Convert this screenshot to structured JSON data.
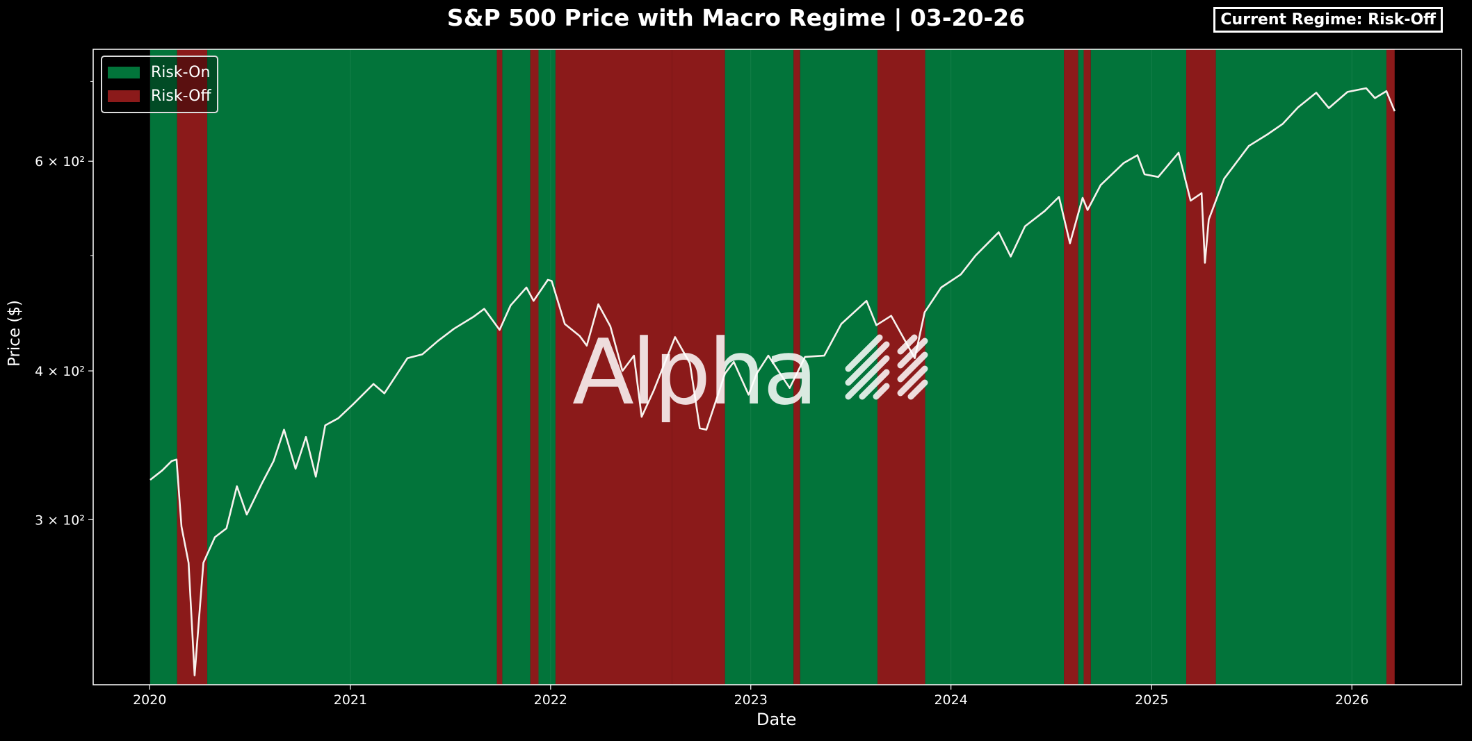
{
  "title": "S&P 500 Price with Macro Regime | 03-20-26",
  "current_regime_label": "Current Regime: Risk-Off",
  "watermark_text": "Alpha",
  "watermark_icon": "slash-pattern-icon",
  "colors": {
    "risk_on": "#02743A",
    "risk_off": "#8B1A1A",
    "price_line": "#F8F2EE",
    "background": "#000000"
  },
  "chart_data": {
    "type": "line",
    "title": "S&P 500 Price with Macro Regime | 03-20-26",
    "xlabel": "Date",
    "ylabel": "Price ($)",
    "yscale": "log",
    "xlim": [
      "2019-09-20",
      "2026-07-20"
    ],
    "ylim": [
      218,
      745
    ],
    "x_ticks": [
      "2020",
      "2021",
      "2022",
      "2023",
      "2024",
      "2025",
      "2026"
    ],
    "y_tick_labels": [
      "3 × 10²",
      "4 × 10²",
      "6 × 10²"
    ],
    "y_tick_values": [
      300,
      400,
      600
    ],
    "y_minor_tick_values": [
      500,
      700
    ],
    "legend": {
      "position": "top-left",
      "entries": [
        "Risk-On",
        "Risk-Off"
      ]
    },
    "regime_bands": [
      {
        "regime": "Risk-On",
        "start": "2020-01-02",
        "end": "2020-02-20"
      },
      {
        "regime": "Risk-Off",
        "start": "2020-02-20",
        "end": "2020-04-15"
      },
      {
        "regime": "Risk-On",
        "start": "2020-04-15",
        "end": "2021-09-25"
      },
      {
        "regime": "Risk-Off",
        "start": "2021-09-25",
        "end": "2021-10-05"
      },
      {
        "regime": "Risk-On",
        "start": "2021-10-05",
        "end": "2021-11-25"
      },
      {
        "regime": "Risk-Off",
        "start": "2021-11-25",
        "end": "2021-12-10"
      },
      {
        "regime": "Risk-On",
        "start": "2021-12-10",
        "end": "2022-01-10"
      },
      {
        "regime": "Risk-Off",
        "start": "2022-01-10",
        "end": "2022-08-10"
      },
      {
        "regime": "Risk-Off",
        "start": "2022-08-10",
        "end": "2022-11-15"
      },
      {
        "regime": "Risk-On",
        "start": "2022-11-15",
        "end": "2023-03-20"
      },
      {
        "regime": "Risk-Off",
        "start": "2023-03-20",
        "end": "2023-04-01"
      },
      {
        "regime": "Risk-On",
        "start": "2023-04-01",
        "end": "2023-08-20"
      },
      {
        "regime": "Risk-Off",
        "start": "2023-08-20",
        "end": "2023-11-15"
      },
      {
        "regime": "Risk-On",
        "start": "2023-11-15",
        "end": "2024-07-25"
      },
      {
        "regime": "Risk-Off",
        "start": "2024-07-25",
        "end": "2024-08-20"
      },
      {
        "regime": "Risk-On",
        "start": "2024-08-20",
        "end": "2024-08-30"
      },
      {
        "regime": "Risk-Off",
        "start": "2024-08-30",
        "end": "2024-09-12"
      },
      {
        "regime": "Risk-On",
        "start": "2024-09-12",
        "end": "2025-03-05"
      },
      {
        "regime": "Risk-Off",
        "start": "2025-03-05",
        "end": "2025-04-28"
      },
      {
        "regime": "Risk-On",
        "start": "2025-04-28",
        "end": "2026-03-05"
      },
      {
        "regime": "Risk-Off",
        "start": "2026-03-05",
        "end": "2026-03-20"
      }
    ],
    "series": [
      {
        "x": [
          "2020-01-02",
          "2020-01-24",
          "2020-02-10",
          "2020-02-19",
          "2020-02-28",
          "2020-03-12",
          "2020-03-23",
          "2020-04-08",
          "2020-04-29",
          "2020-05-20",
          "2020-06-08",
          "2020-06-26",
          "2020-07-24",
          "2020-08-14",
          "2020-09-02",
          "2020-09-23",
          "2020-10-12",
          "2020-10-30",
          "2020-11-16",
          "2020-12-10",
          "2021-01-06",
          "2021-02-12",
          "2021-03-04",
          "2021-04-15",
          "2021-05-12",
          "2021-06-10",
          "2021-07-09",
          "2021-08-13",
          "2021-09-02",
          "2021-09-30",
          "2021-10-20",
          "2021-11-18",
          "2021-12-01",
          "2021-12-27",
          "2022-01-03",
          "2022-01-27",
          "2022-02-23",
          "2022-03-08",
          "2022-03-29",
          "2022-04-20",
          "2022-05-12",
          "2022-06-02",
          "2022-06-16",
          "2022-07-08",
          "2022-08-16",
          "2022-09-12",
          "2022-09-30",
          "2022-10-12",
          "2022-11-15",
          "2022-12-01",
          "2022-12-28",
          "2023-01-12",
          "2023-02-02",
          "2023-03-13",
          "2023-04-10",
          "2023-05-15",
          "2023-06-15",
          "2023-07-31",
          "2023-08-18",
          "2023-09-14",
          "2023-10-27",
          "2023-11-14",
          "2023-12-14",
          "2024-01-19",
          "2024-02-15",
          "2024-03-28",
          "2024-04-19",
          "2024-05-15",
          "2024-06-20",
          "2024-07-16",
          "2024-08-05",
          "2024-08-28",
          "2024-09-06",
          "2024-09-30",
          "2024-11-11",
          "2024-12-06",
          "2024-12-19",
          "2025-01-13",
          "2025-02-19",
          "2025-03-13",
          "2025-04-02",
          "2025-04-08",
          "2025-04-15",
          "2025-05-13",
          "2025-06-27",
          "2025-07-31",
          "2025-08-28",
          "2025-09-25",
          "2025-10-28",
          "2025-11-20",
          "2025-12-24",
          "2026-01-27",
          "2026-02-12",
          "2026-03-05",
          "2026-03-20"
        ],
        "y": [
          324,
          330,
          336,
          337,
          296,
          276,
          222,
          276,
          290,
          295,
          320,
          303,
          322,
          336,
          357,
          331,
          352,
          326,
          360,
          365,
          375,
          390,
          383,
          410,
          413,
          424,
          434,
          444,
          451,
          433,
          454,
          470,
          458,
          477,
          476,
          438,
          428,
          420,
          455,
          436,
          400,
          412,
          366,
          385,
          427,
          406,
          358,
          357,
          398,
          407,
          382,
          398,
          412,
          387,
          411,
          412,
          438,
          458,
          437,
          445,
          410,
          448,
          470,
          482,
          500,
          523,
          499,
          529,
          545,
          560,
          512,
          559,
          546,
          573,
          598,
          607,
          585,
          582,
          610,
          556,
          564,
          493,
          536,
          580,
          618,
          632,
          645,
          666,
          685,
          665,
          686,
          691,
          678,
          687,
          661
        ]
      }
    ]
  }
}
